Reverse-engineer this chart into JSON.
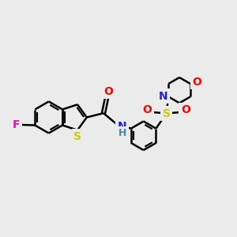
{
  "background_color": "#ebebeb",
  "bond_color": "#000000",
  "bond_width": 1.8,
  "atom_colors": {
    "F": "#ff00cc",
    "S_thio": "#cccc00",
    "S_sulfonyl": "#cccc00",
    "O_carbonyl": "#ff0000",
    "O_sulfonyl": "#ff0000",
    "O_morpho": "#ff0000",
    "N_amide": "#2222dd",
    "N_morpho": "#2222dd",
    "H_amide": "#4488aa"
  },
  "font_size": 9,
  "fig_size": [
    3.0,
    3.0
  ],
  "dpi": 100,
  "xlim": [
    0,
    10
  ],
  "ylim": [
    0,
    10
  ]
}
